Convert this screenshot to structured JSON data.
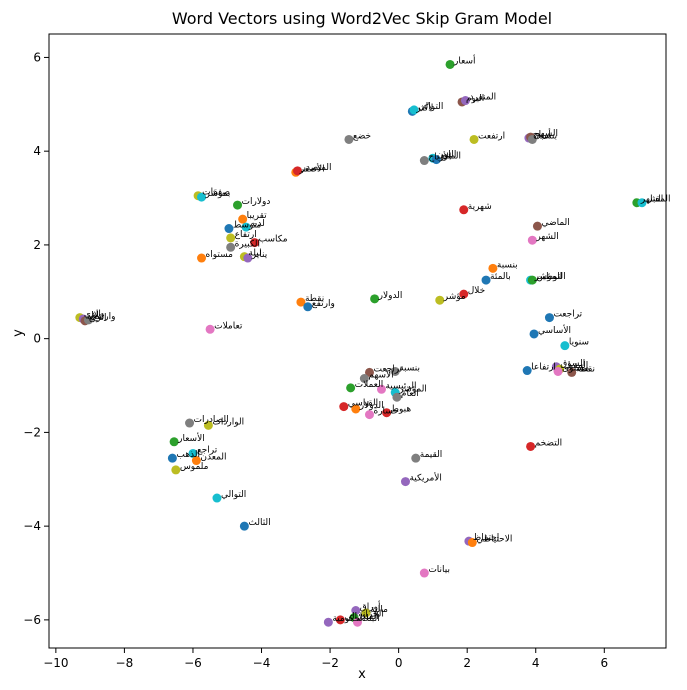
{
  "chart_data": {
    "type": "scatter",
    "title": "Word Vectors using Word2Vec Skip Gram Model",
    "xlabel": "x",
    "ylabel": "y",
    "xlim": [
      -10.2,
      7.8
    ],
    "ylim": [
      -6.6,
      6.5
    ],
    "xticks": [
      -10,
      -8,
      -6,
      -4,
      -2,
      0,
      2,
      4,
      6
    ],
    "yticks": [
      -6,
      -4,
      -2,
      0,
      2,
      4,
      6
    ],
    "grid": false,
    "palette": [
      "#1f77b4",
      "#ff7f0e",
      "#2ca02c",
      "#d62728",
      "#9467bd",
      "#8c564b",
      "#e377c2",
      "#7f7f7f",
      "#bcbd22",
      "#17becf"
    ],
    "points": [
      {
        "x": 1.5,
        "y": 5.85,
        "label": "أسعار",
        "c": 2
      },
      {
        "x": 1.85,
        "y": 5.05,
        "label": "اليوم",
        "c": 5
      },
      {
        "x": 1.95,
        "y": 5.08,
        "label": "المنفرد",
        "c": 4
      },
      {
        "x": 0.4,
        "y": 4.85,
        "label": "لأكثر",
        "c": 0
      },
      {
        "x": 0.45,
        "y": 4.88,
        "label": "التوالي",
        "c": 9
      },
      {
        "x": -1.45,
        "y": 4.25,
        "label": "خضع",
        "c": 7
      },
      {
        "x": 2.2,
        "y": 4.25,
        "label": "ارتفعت",
        "c": 8
      },
      {
        "x": 3.8,
        "y": 4.28,
        "label": "أرباح",
        "c": 4
      },
      {
        "x": 3.85,
        "y": 4.3,
        "label": "السهم",
        "c": 5
      },
      {
        "x": 3.9,
        "y": 4.25,
        "label": "بنسبة",
        "c": 7
      },
      {
        "x": 0.75,
        "y": 3.8,
        "label": "الأرباح",
        "c": 7
      },
      {
        "x": 1.0,
        "y": 3.85,
        "label": "اللون",
        "c": 9
      },
      {
        "x": 1.1,
        "y": 3.82,
        "label": "المنبع",
        "c": 0
      },
      {
        "x": -3.0,
        "y": 3.55,
        "label": "الأصفر",
        "c": 1
      },
      {
        "x": -2.95,
        "y": 3.58,
        "label": "المتصدر",
        "c": 3
      },
      {
        "x": 1.9,
        "y": 2.75,
        "label": "شهرية",
        "c": 3
      },
      {
        "x": 6.95,
        "y": 2.9,
        "label": "الشهر",
        "c": 2
      },
      {
        "x": 7.1,
        "y": 2.9,
        "label": "المقبل",
        "c": 9
      },
      {
        "x": -5.85,
        "y": 3.05,
        "label": "صفقات",
        "c": 8
      },
      {
        "x": -5.75,
        "y": 3.02,
        "label": "بمؤشر",
        "c": 9
      },
      {
        "x": -4.7,
        "y": 2.85,
        "label": "دولارات",
        "c": 2
      },
      {
        "x": -4.55,
        "y": 2.55,
        "label": "تقريبا",
        "c": 1
      },
      {
        "x": -4.95,
        "y": 2.35,
        "label": "متوسط",
        "c": 0
      },
      {
        "x": -4.45,
        "y": 2.38,
        "label": "لديه",
        "c": 9
      },
      {
        "x": 4.05,
        "y": 2.4,
        "label": "الماضي",
        "c": 5
      },
      {
        "x": -4.9,
        "y": 2.15,
        "label": "ارتفاع",
        "c": 8
      },
      {
        "x": -4.2,
        "y": 2.05,
        "label": "مكاسب",
        "c": 3
      },
      {
        "x": 3.9,
        "y": 2.1,
        "label": "الشهر",
        "c": 6
      },
      {
        "x": -4.9,
        "y": 1.95,
        "label": "الكبيرة",
        "c": 7
      },
      {
        "x": -4.5,
        "y": 1.75,
        "label": "ليلة",
        "c": 8
      },
      {
        "x": -4.4,
        "y": 1.72,
        "label": "يناير",
        "c": 4
      },
      {
        "x": -5.75,
        "y": 1.72,
        "label": "مستواه",
        "c": 1
      },
      {
        "x": 2.75,
        "y": 1.5,
        "label": "بنسبة",
        "c": 1
      },
      {
        "x": 2.55,
        "y": 1.25,
        "label": "بالمئة",
        "c": 0
      },
      {
        "x": 3.85,
        "y": 1.25,
        "label": "المؤشر",
        "c": 9
      },
      {
        "x": 3.9,
        "y": 1.25,
        "label": "التوطين",
        "c": 2
      },
      {
        "x": 1.9,
        "y": 0.95,
        "label": "خلال",
        "c": 3
      },
      {
        "x": -0.7,
        "y": 0.85,
        "label": "الدولار",
        "c": 2
      },
      {
        "x": 1.2,
        "y": 0.82,
        "label": "مؤشر",
        "c": 8
      },
      {
        "x": -2.85,
        "y": 0.78,
        "label": "نقطة",
        "c": 1
      },
      {
        "x": -2.65,
        "y": 0.68,
        "label": "وارتفع",
        "c": 0
      },
      {
        "x": 4.4,
        "y": 0.45,
        "label": "تراجعت",
        "c": 0
      },
      {
        "x": 3.95,
        "y": 0.1,
        "label": "الأساسي",
        "c": 0
      },
      {
        "x": 4.85,
        "y": -0.15,
        "label": "سنويا",
        "c": 9
      },
      {
        "x": -9.3,
        "y": 0.45,
        "label": "الذي",
        "c": 8
      },
      {
        "x": -9.2,
        "y": 0.42,
        "label": "خلال",
        "c": 4
      },
      {
        "x": -9.15,
        "y": 0.38,
        "label": "الربع",
        "c": 5
      },
      {
        "x": -9.05,
        "y": 0.4,
        "label": "وارتفع",
        "c": 7
      },
      {
        "x": -5.5,
        "y": 0.2,
        "label": "تعاملات",
        "c": 6
      },
      {
        "x": 3.75,
        "y": -0.68,
        "label": "ارتفاعا",
        "c": 0
      },
      {
        "x": 4.6,
        "y": -0.6,
        "label": "السوق",
        "c": 4
      },
      {
        "x": 4.7,
        "y": -0.65,
        "label": "المقبل",
        "c": 8
      },
      {
        "x": 5.05,
        "y": -0.72,
        "label": "نقطة",
        "c": 5
      },
      {
        "x": 4.65,
        "y": -0.7,
        "label": "مستوى",
        "c": 6
      },
      {
        "x": -0.85,
        "y": -0.72,
        "label": "تراجعت",
        "c": 5
      },
      {
        "x": -0.1,
        "y": -0.7,
        "label": "بنسبة",
        "c": 7
      },
      {
        "x": -1.0,
        "y": -0.85,
        "label": "الأسهم",
        "c": 7
      },
      {
        "x": -1.4,
        "y": -1.05,
        "label": "العملات",
        "c": 2
      },
      {
        "x": -0.5,
        "y": -1.08,
        "label": "الرئيسية",
        "c": 6
      },
      {
        "x": -0.1,
        "y": -1.15,
        "label": "المؤشر",
        "c": 9
      },
      {
        "x": -0.05,
        "y": -1.25,
        "label": "العام",
        "c": 7
      },
      {
        "x": -1.6,
        "y": -1.45,
        "label": "القياسي",
        "c": 3
      },
      {
        "x": -1.25,
        "y": -1.5,
        "label": "الدولار",
        "c": 1
      },
      {
        "x": -0.85,
        "y": -1.62,
        "label": "خسارة",
        "c": 6
      },
      {
        "x": -0.35,
        "y": -1.58,
        "label": "هبوط",
        "c": 3
      },
      {
        "x": -6.1,
        "y": -1.8,
        "label": "الصادرات",
        "c": 7
      },
      {
        "x": -5.55,
        "y": -1.85,
        "label": "الواردات",
        "c": 8
      },
      {
        "x": -6.55,
        "y": -2.2,
        "label": "الأسعار",
        "c": 2
      },
      {
        "x": 3.85,
        "y": -2.3,
        "label": "التضخم",
        "c": 3
      },
      {
        "x": -6.0,
        "y": -2.45,
        "label": "تراجع",
        "c": 9
      },
      {
        "x": -6.6,
        "y": -2.55,
        "label": "الذهب",
        "c": 0
      },
      {
        "x": -5.9,
        "y": -2.6,
        "label": "المعدن",
        "c": 1
      },
      {
        "x": -6.5,
        "y": -2.8,
        "label": "ملموس",
        "c": 8
      },
      {
        "x": 0.5,
        "y": -2.55,
        "label": "القيمة",
        "c": 7
      },
      {
        "x": 0.2,
        "y": -3.05,
        "label": "الأمريكية",
        "c": 4
      },
      {
        "x": -5.3,
        "y": -3.4,
        "label": "التوالي",
        "c": 9
      },
      {
        "x": -4.5,
        "y": -4.0,
        "label": "الثالث",
        "c": 0
      },
      {
        "x": 2.05,
        "y": -4.32,
        "label": "احتفاظ",
        "c": 4
      },
      {
        "x": 2.15,
        "y": -4.35,
        "label": "الاحتياطي",
        "c": 1
      },
      {
        "x": 0.75,
        "y": -5.0,
        "label": "بيانات",
        "c": 6
      },
      {
        "x": -1.25,
        "y": -5.8,
        "label": "أوراق",
        "c": 4
      },
      {
        "x": -0.95,
        "y": -5.85,
        "label": "مالية",
        "c": 8
      },
      {
        "x": -1.3,
        "y": -5.95,
        "label": "الخزانة",
        "c": 2
      },
      {
        "x": -2.05,
        "y": -6.05,
        "label": "الحكومية",
        "c": 4
      },
      {
        "x": -1.7,
        "y": -6.0,
        "label": "الفيدرالي",
        "c": 3
      },
      {
        "x": -1.2,
        "y": -6.05,
        "label": "البنك",
        "c": 6
      }
    ]
  }
}
